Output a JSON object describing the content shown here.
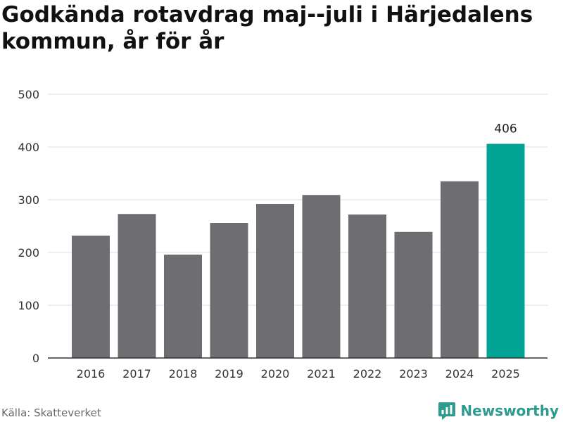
{
  "title": "Godkända rotavdrag maj--juli i Härjedalens kommun, år för år",
  "source": "Källa: Skatteverket",
  "brand": "Newsworthy",
  "colors": {
    "bar": "#6e6d72",
    "highlight": "#00a394",
    "grid": "#dedede",
    "axis": "#333333",
    "brand": "#2d9c8e"
  },
  "chart_data": {
    "type": "bar",
    "title": "Godkända rotavdrag maj--juli i Härjedalens kommun, år för år",
    "xlabel": "",
    "ylabel": "",
    "categories": [
      "2016",
      "2017",
      "2018",
      "2019",
      "2020",
      "2021",
      "2022",
      "2023",
      "2024",
      "2025"
    ],
    "values": [
      232,
      273,
      196,
      256,
      292,
      309,
      272,
      239,
      335,
      406
    ],
    "highlight_index": 9,
    "data_labels": [
      {
        "index": 9,
        "text": "406"
      }
    ],
    "ylim": [
      0,
      500
    ],
    "yticks": [
      0,
      100,
      200,
      300,
      400,
      500
    ],
    "grid": true,
    "legend": "none"
  }
}
